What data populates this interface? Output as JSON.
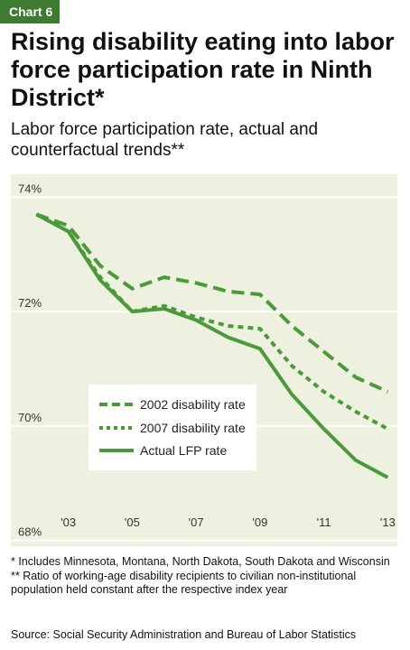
{
  "tag": "Chart 6",
  "title": "Rising disability eating into labor force participation rate in Ninth District*",
  "subtitle": "Labor force participation rate, actual and counterfactual trends**",
  "notes": [
    "* Includes Minnesota, Montana, North Dakota, South Dakota and Wisconsin",
    "** Ratio of working-age disability recipients to civilian non-institutional population held constant after the respective index year"
  ],
  "source": "Source: Social Security Administration and Bureau of Labor Statistics",
  "colors": {
    "accent": "#3f7a32",
    "line": "#4a9a3a",
    "plot_bg": "#eef1df",
    "gridline": "#ffffff"
  },
  "chart_data": {
    "type": "line",
    "title": "",
    "xlabel": "",
    "ylabel": "",
    "x": [
      2002,
      2003,
      2004,
      2005,
      2006,
      2007,
      2008,
      2009,
      2010,
      2011,
      2012,
      2013
    ],
    "x_ticks": [
      2003,
      2005,
      2007,
      2009,
      2011,
      2013
    ],
    "x_tick_labels": [
      "'03",
      "'05",
      "'07",
      "'09",
      "'11",
      "'13"
    ],
    "y_ticks": [
      68,
      70,
      72,
      74
    ],
    "y_tick_labels": [
      "68%",
      "70%",
      "72%",
      "74%"
    ],
    "ylim": [
      67.9,
      74.4
    ],
    "xlim": [
      2001.2,
      2013.3
    ],
    "grid": true,
    "legend_position": "lower-left",
    "series": [
      {
        "name": "2002 disability rate",
        "style": "dashed",
        "values": [
          73.7,
          73.5,
          72.8,
          72.4,
          72.6,
          72.5,
          72.35,
          72.3,
          71.75,
          71.3,
          70.85,
          70.6
        ]
      },
      {
        "name": "2007 disability rate",
        "style": "dotted",
        "values": [
          73.7,
          73.4,
          72.6,
          72.0,
          72.1,
          71.9,
          71.75,
          71.7,
          71.05,
          70.6,
          70.25,
          69.95
        ]
      },
      {
        "name": "Actual LFP rate",
        "style": "solid",
        "values": [
          73.7,
          73.4,
          72.55,
          72.0,
          72.05,
          71.85,
          71.55,
          71.35,
          70.55,
          69.95,
          69.4,
          69.1
        ]
      }
    ]
  }
}
